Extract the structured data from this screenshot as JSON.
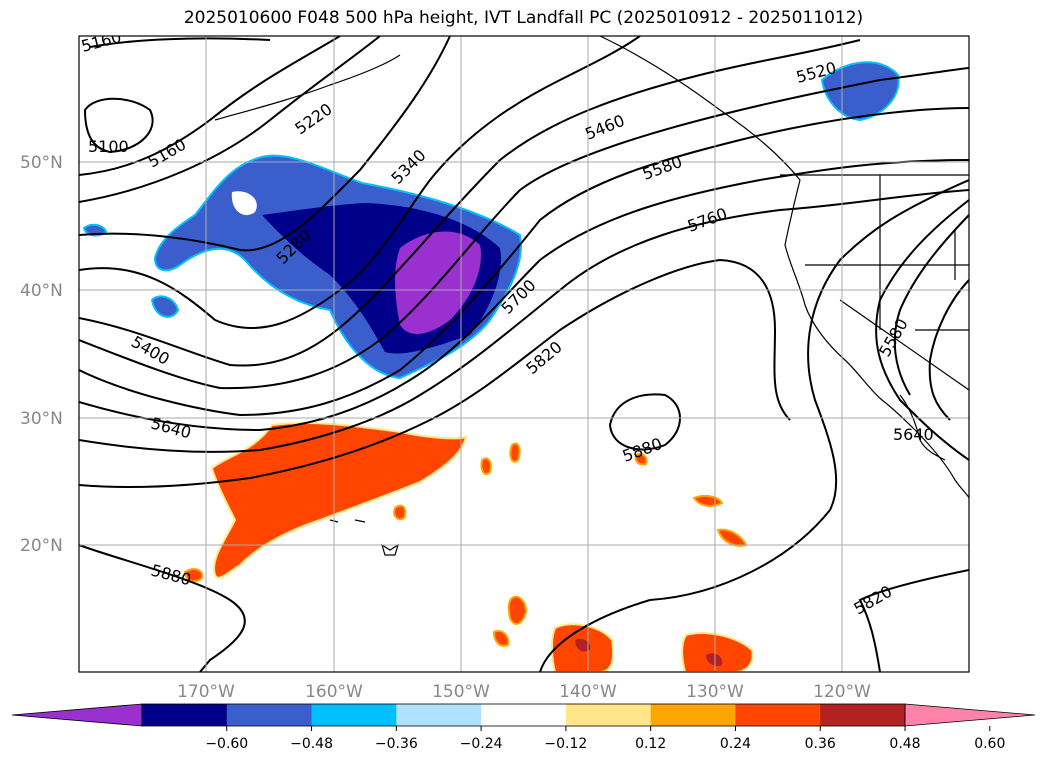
{
  "title": "2025010600 F048 500 hPa height, IVT Landfall PC (2025010912 - 2025011012)",
  "map": {
    "lat_labels": [
      "50°N",
      "40°N",
      "30°N",
      "20°N"
    ],
    "lon_labels": [
      "170°W",
      "160°W",
      "150°W",
      "140°W",
      "130°W",
      "120°W"
    ],
    "contour_labels": [
      "5160",
      "5100",
      "5160",
      "5220",
      "5280",
      "5340",
      "5400",
      "5460",
      "5520",
      "5580",
      "5640",
      "5700",
      "5760",
      "5820",
      "5880",
      "5880",
      "5820",
      "5580",
      "5640"
    ]
  },
  "colorbar": {
    "ticks": [
      "−0.60",
      "−0.48",
      "−0.36",
      "−0.24",
      "−0.12",
      "0.12",
      "0.24",
      "0.36",
      "0.48",
      "0.60"
    ],
    "colors": [
      "#9b30d0",
      "#00008b",
      "#3a5fcd",
      "#00bfff",
      "#b0e2ff",
      "#ffffff",
      "#ffe68a",
      "#ffa500",
      "#ff4500",
      "#b22222",
      "#ff82ab"
    ]
  },
  "colors": {
    "negative_strong": "#9b30d0",
    "negative_mid": "#00008b",
    "negative": "#3a5fcd",
    "positive": "#ff4500",
    "positive_strong": "#b22222"
  }
}
